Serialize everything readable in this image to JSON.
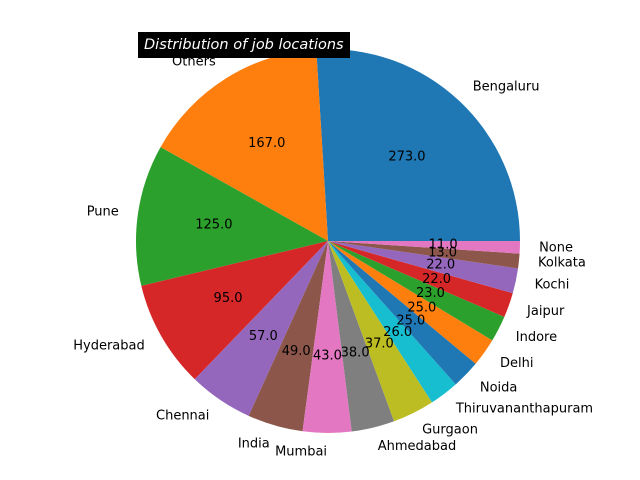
{
  "chart_data": {
    "type": "pie",
    "title": "Distribution of job locations",
    "slices": [
      {
        "label": "Bengaluru",
        "value": 273.0,
        "display": "273.0",
        "color": "#1f77b4"
      },
      {
        "label": "Others",
        "value": 167.0,
        "display": "167.0",
        "color": "#ff7f0e"
      },
      {
        "label": "Pune",
        "value": 125.0,
        "display": "125.0",
        "color": "#2ca02c"
      },
      {
        "label": "Hyderabad",
        "value": 95.0,
        "display": "95.0",
        "color": "#d62728"
      },
      {
        "label": "Chennai",
        "value": 57.0,
        "display": "57.0",
        "color": "#9467bd"
      },
      {
        "label": "India",
        "value": 49.0,
        "display": "49.0",
        "color": "#8c564b"
      },
      {
        "label": "Mumbai",
        "value": 43.0,
        "display": "43.0",
        "color": "#e377c2"
      },
      {
        "label": "Ahmedabad",
        "value": 38.0,
        "display": "38.0",
        "color": "#7f7f7f"
      },
      {
        "label": "Gurgaon",
        "value": 37.0,
        "display": "37.0",
        "color": "#bcbd22"
      },
      {
        "label": "Thiruvananthapuram",
        "value": 26.0,
        "display": "26.0",
        "color": "#17becf"
      },
      {
        "label": "Noida",
        "value": 25.0,
        "display": "25.0",
        "color": "#1f77b4"
      },
      {
        "label": "Delhi",
        "value": 25.0,
        "display": "25.0",
        "color": "#ff7f0e"
      },
      {
        "label": "Indore",
        "value": 23.0,
        "display": "23.0",
        "color": "#2ca02c"
      },
      {
        "label": "Jaipur",
        "value": 22.0,
        "display": "22.0",
        "color": "#d62728"
      },
      {
        "label": "Kochi",
        "value": 22.0,
        "display": "22.0",
        "color": "#9467bd"
      },
      {
        "label": "Kolkata",
        "value": 13.0,
        "display": "13.0",
        "color": "#8c564b"
      },
      {
        "label": "None",
        "value": 11.0,
        "display": "11.0",
        "color": "#e377c2"
      }
    ],
    "start_angle_deg": 0,
    "direction": "counterclockwise",
    "legend": "none"
  }
}
